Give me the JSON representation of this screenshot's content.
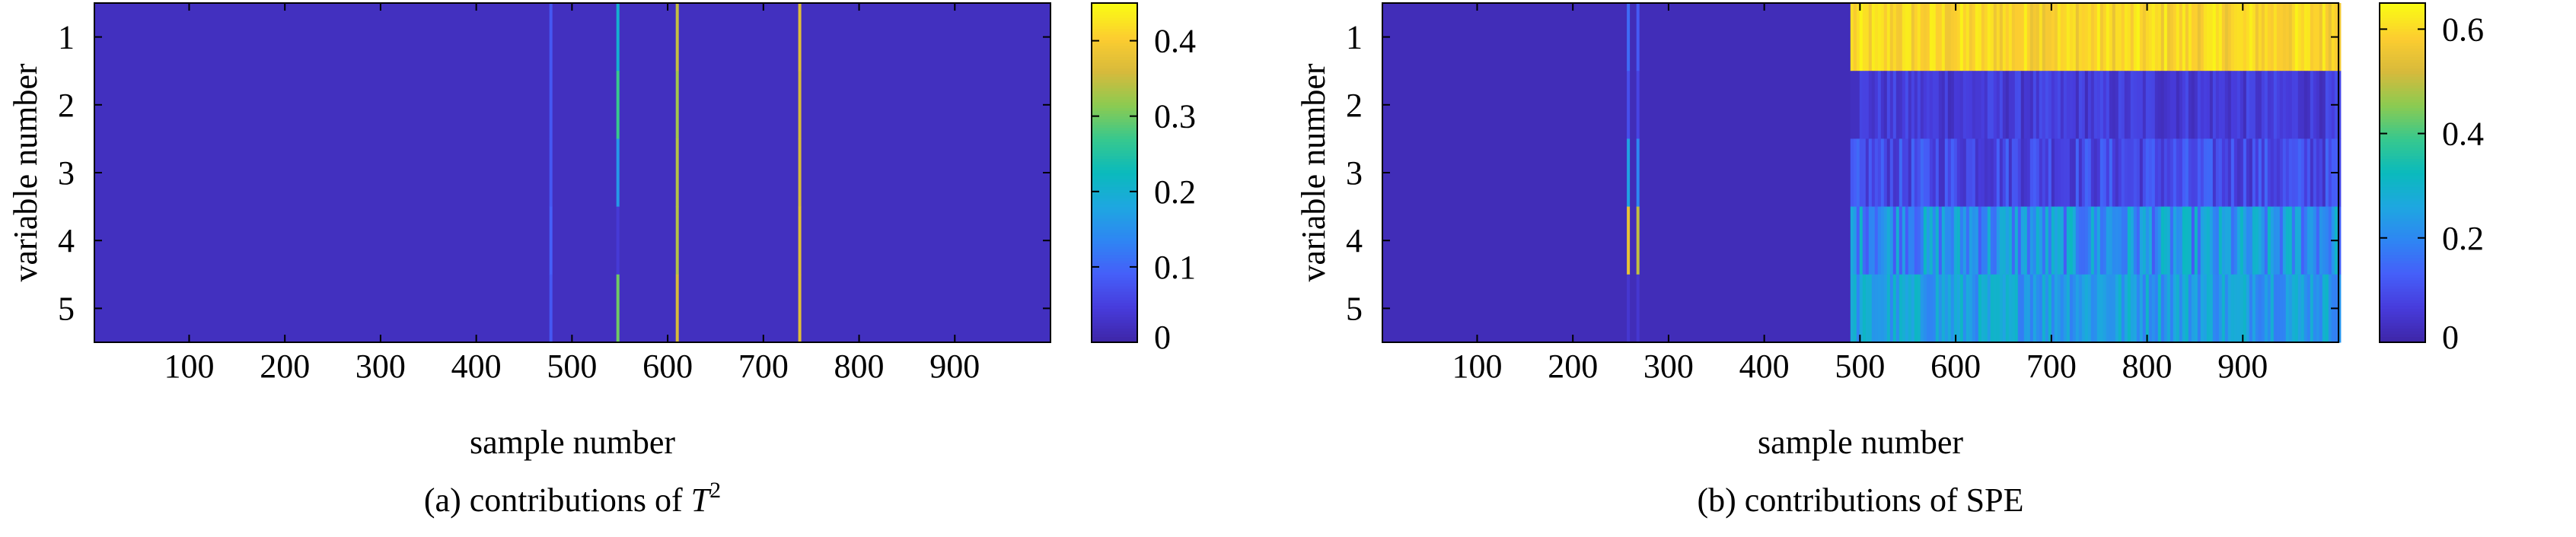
{
  "chart_data": [
    {
      "type": "heatmap",
      "caption_prefix": "(a) contributions of ",
      "caption_symbol": "T",
      "caption_superscript": "2",
      "xlabel": "sample number",
      "ylabel": "variable number",
      "xlim": [
        1,
        1000
      ],
      "x_ticks": [
        100,
        200,
        300,
        400,
        500,
        600,
        700,
        800,
        900
      ],
      "y_ticks": [
        1,
        2,
        3,
        4,
        5
      ],
      "colorbar_range": [
        0,
        0.45
      ],
      "colorbar_ticks": [
        0,
        0.1,
        0.2,
        0.3,
        0.4
      ],
      "colormap": "parula",
      "background_value": 0.02,
      "stripes": [
        {
          "x": 478,
          "rows": [
            1,
            2,
            3,
            4,
            5
          ],
          "values": [
            0.08,
            0.08,
            0.08,
            0.09,
            0.08
          ]
        },
        {
          "x": 548,
          "rows": [
            1,
            2,
            3,
            4,
            5
          ],
          "values": [
            0.2,
            0.27,
            0.16,
            0.04,
            0.3
          ]
        },
        {
          "x": 610,
          "rows": [
            1,
            2,
            3,
            4,
            5
          ],
          "values": [
            0.35,
            0.33,
            0.34,
            0.34,
            0.36
          ]
        },
        {
          "x": 738,
          "rows": [
            1,
            2,
            3,
            4,
            5
          ],
          "values": [
            0.37,
            0.36,
            0.36,
            0.37,
            0.37
          ]
        }
      ]
    },
    {
      "type": "heatmap",
      "caption_prefix": "(b) contributions of SPE",
      "caption_symbol": "",
      "caption_superscript": "",
      "xlabel": "sample number",
      "ylabel": "variable number",
      "xlim": [
        1,
        1000
      ],
      "x_ticks": [
        100,
        200,
        300,
        400,
        500,
        600,
        700,
        800,
        900
      ],
      "y_ticks": [
        1,
        2,
        3,
        4,
        5
      ],
      "colorbar_range": [
        0,
        0.65
      ],
      "colorbar_ticks": [
        0,
        0.2,
        0.4,
        0.6
      ],
      "colormap": "parula",
      "background_value": 0.02,
      "stripes": [
        {
          "x": 258,
          "rows": [
            1,
            2,
            3,
            4,
            5
          ],
          "values": [
            0.15,
            0.1,
            0.25,
            0.55,
            0.05
          ]
        },
        {
          "x": 268,
          "rows": [
            1,
            2,
            3,
            4,
            5
          ],
          "values": [
            0.12,
            0.08,
            0.2,
            0.5,
            0.05
          ]
        }
      ],
      "fault_region": {
        "x_start": 490,
        "x_end": 1000,
        "row_levels": [
          {
            "row": 1,
            "min": 0.55,
            "max": 0.64
          },
          {
            "row": 2,
            "min": 0.02,
            "max": 0.1
          },
          {
            "row": 3,
            "min": 0.03,
            "max": 0.15
          },
          {
            "row": 4,
            "min": 0.12,
            "max": 0.32
          },
          {
            "row": 5,
            "min": 0.18,
            "max": 0.32
          }
        ]
      }
    }
  ]
}
